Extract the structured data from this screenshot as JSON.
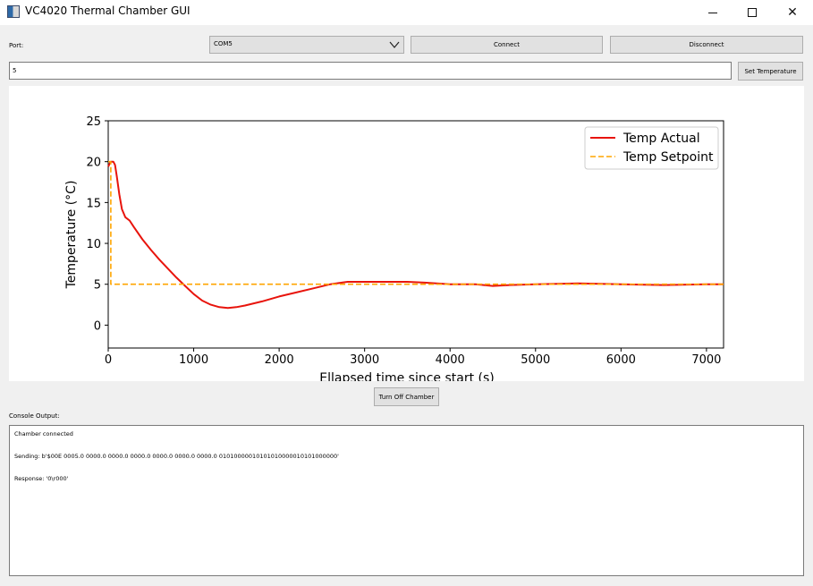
{
  "window": {
    "title": "VC4020 Thermal Chamber GUI",
    "minimize_glyph": "",
    "close_glyph": "✕"
  },
  "controls": {
    "port_label": "Port:",
    "port_value": "COM5",
    "connect_label": "Connect",
    "disconnect_label": "Disconnect",
    "temperature_input_value": "5",
    "set_temperature_label": "Set Temperature",
    "turn_off_label": "Turn Off Chamber",
    "console_label": "Console Output:"
  },
  "console": {
    "lines": [
      "Chamber connected",
      "Sending: b'$00E 0005.0 0000.0 0000.0 0000.0 0000.0 0000.0 0000.0 01010000010101010000010101000000'",
      "Response: '0\\r000'"
    ]
  },
  "colors": {
    "actual": "#e8140c",
    "setpoint": "#ffa500"
  },
  "chart_data": {
    "type": "line",
    "xlabel": "Ellapsed time since start (s)",
    "ylabel": "Temperature (°C)",
    "xlim": [
      0,
      7200
    ],
    "ylim": [
      -2.8,
      25
    ],
    "xticks": [
      0,
      1000,
      2000,
      3000,
      4000,
      5000,
      6000,
      7000
    ],
    "yticks": [
      0,
      5,
      10,
      15,
      20,
      25
    ],
    "legend_position": "top-right",
    "grid": false,
    "series": [
      {
        "name": "Temp Actual",
        "style": "solid",
        "x": [
          0,
          30,
          60,
          80,
          100,
          130,
          160,
          200,
          250,
          300,
          400,
          500,
          600,
          700,
          800,
          900,
          1000,
          1100,
          1200,
          1300,
          1400,
          1500,
          1600,
          1800,
          2000,
          2200,
          2400,
          2600,
          2800,
          3000,
          3200,
          3500,
          3700,
          4000,
          4300,
          4500,
          4700,
          5000,
          5500,
          6000,
          6500,
          7000,
          7200
        ],
        "y": [
          19.4,
          20.0,
          20.0,
          19.6,
          18.2,
          16.0,
          14.2,
          13.2,
          12.8,
          12.0,
          10.5,
          9.2,
          8.0,
          6.9,
          5.8,
          4.8,
          3.8,
          3.0,
          2.5,
          2.2,
          2.1,
          2.2,
          2.4,
          2.9,
          3.5,
          4.0,
          4.5,
          5.0,
          5.3,
          5.3,
          5.3,
          5.3,
          5.2,
          5.0,
          5.0,
          4.8,
          4.9,
          5.0,
          5.1,
          5.0,
          4.9,
          5.0,
          5.0
        ]
      },
      {
        "name": "Temp Setpoint",
        "style": "dashed",
        "x": [
          0,
          30,
          30,
          7200
        ],
        "y": [
          20,
          20,
          5,
          5
        ]
      }
    ]
  }
}
